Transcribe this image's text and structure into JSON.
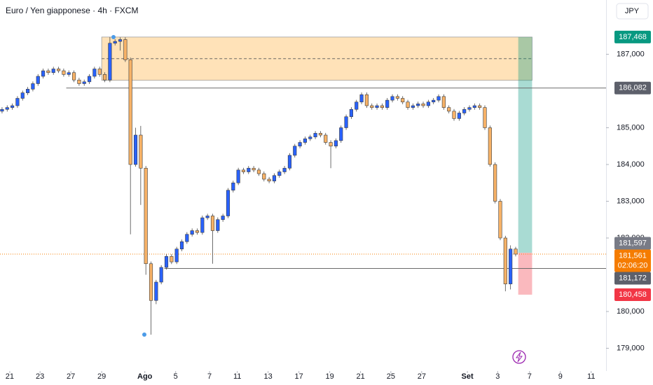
{
  "chart_data": {
    "type": "candlestick",
    "title": "Euro / Yen giapponese · 4h · FXCM",
    "currency": "JPY",
    "up_color": "#2962ff",
    "down_color": "#f7b267",
    "xlim": [
      -0.4,
      117.6
    ],
    "ylim": [
      178381,
      188476
    ],
    "xticks": [
      {
        "value": 1.5,
        "label": "21"
      },
      {
        "value": 7.4,
        "label": "23"
      },
      {
        "value": 13.4,
        "label": "27"
      },
      {
        "value": 19.4,
        "label": "29"
      },
      {
        "value": 27.8,
        "label": "Ago"
      },
      {
        "value": 33.8,
        "label": "5"
      },
      {
        "value": 40.4,
        "label": "7"
      },
      {
        "value": 45.8,
        "label": "11"
      },
      {
        "value": 51.8,
        "label": "13"
      },
      {
        "value": 57.8,
        "label": "17"
      },
      {
        "value": 63.8,
        "label": "19"
      },
      {
        "value": 69.8,
        "label": "21"
      },
      {
        "value": 75.7,
        "label": "25"
      },
      {
        "value": 81.7,
        "label": "27"
      },
      {
        "value": 90.6,
        "label": "Set"
      },
      {
        "value": 96.5,
        "label": "3"
      },
      {
        "value": 102.7,
        "label": "7"
      },
      {
        "value": 108.7,
        "label": "9"
      },
      {
        "value": 114.7,
        "label": "11"
      }
    ],
    "yticks": [
      {
        "value": 179000,
        "label": "179,000"
      },
      {
        "value": 180000,
        "label": "180,000"
      },
      {
        "value": 182000,
        "label": "182,000"
      },
      {
        "value": 183000,
        "label": "183,000"
      },
      {
        "value": 184000,
        "label": "184,000"
      },
      {
        "value": 185000,
        "label": "185,000"
      },
      {
        "value": 187000,
        "label": "187,000"
      }
    ],
    "candles": {
      "open": [
        185450,
        185500,
        185550,
        185600,
        185800,
        185950,
        186050,
        186200,
        186400,
        186550,
        186500,
        186600,
        186550,
        186450,
        186500,
        186300,
        186200,
        186250,
        186400,
        186600,
        186450,
        186300,
        187300,
        187350,
        187400,
        186850,
        184000,
        184800,
        183900,
        181300,
        180300,
        180800,
        181200,
        181500,
        181350,
        181700,
        181900,
        182100,
        182200,
        182150,
        182550,
        182600,
        182200,
        182500,
        182600,
        183300,
        183500,
        183850,
        183800,
        183900,
        183850,
        183750,
        183600,
        183550,
        183700,
        183800,
        183900,
        184250,
        184500,
        184600,
        184700,
        184750,
        184850,
        184800,
        184600,
        184500,
        184650,
        185000,
        185300,
        185500,
        185700,
        185900,
        185600,
        185550,
        185600,
        185550,
        185750,
        185850,
        185800,
        185700,
        185550,
        185600,
        185650,
        185600,
        185700,
        185750,
        185850,
        185550,
        185450,
        185250,
        185400,
        185500,
        185550,
        185600,
        185550,
        185000,
        184000,
        183000,
        182000,
        180750,
        181700
      ],
      "high": [
        185560,
        185610,
        185660,
        185860,
        186010,
        186110,
        186260,
        186460,
        186610,
        186610,
        186660,
        186660,
        186610,
        186560,
        186560,
        186360,
        186310,
        186460,
        186660,
        186660,
        186510,
        187468,
        187410,
        187460,
        187460,
        186910,
        185000,
        185050,
        183960,
        181360,
        180860,
        181260,
        181560,
        181560,
        181760,
        181960,
        182160,
        182260,
        182260,
        182610,
        182660,
        182660,
        182560,
        182660,
        183360,
        183560,
        183910,
        183910,
        183960,
        183960,
        183910,
        183810,
        183660,
        183760,
        183860,
        183960,
        184310,
        184560,
        184660,
        184760,
        184810,
        184910,
        184910,
        184860,
        184660,
        184710,
        185060,
        185360,
        185560,
        185760,
        185960,
        185960,
        185660,
        185660,
        185660,
        185810,
        185910,
        185910,
        185860,
        185760,
        185660,
        185710,
        185710,
        185760,
        185810,
        185910,
        185910,
        185610,
        185510,
        185460,
        185560,
        185610,
        185660,
        185660,
        185610,
        185060,
        184060,
        183060,
        182060,
        181800,
        181760
      ],
      "low": [
        185390,
        185440,
        185490,
        185540,
        185740,
        185890,
        185990,
        186140,
        186340,
        186440,
        186440,
        186490,
        186390,
        186390,
        186240,
        186140,
        186140,
        186190,
        186340,
        186390,
        186240,
        186240,
        187240,
        187100,
        186790,
        182100,
        183940,
        182900,
        181000,
        179370,
        180200,
        180740,
        181140,
        181290,
        181290,
        181640,
        181840,
        182040,
        182090,
        182090,
        182490,
        181300,
        182140,
        182440,
        182540,
        183240,
        183440,
        183740,
        183740,
        183790,
        183690,
        183540,
        183490,
        183490,
        183640,
        183740,
        183840,
        184190,
        184440,
        184540,
        184640,
        184690,
        184740,
        184540,
        183900,
        184440,
        184590,
        184940,
        185240,
        185440,
        185640,
        185540,
        185490,
        185490,
        185490,
        185490,
        185690,
        185740,
        185640,
        185490,
        185490,
        185540,
        185540,
        185540,
        185640,
        185690,
        185490,
        185390,
        185190,
        185190,
        185340,
        185440,
        185490,
        185490,
        184940,
        183940,
        182940,
        181940,
        180550,
        180600,
        181500
      ],
      "close": [
        185500,
        185550,
        185600,
        185800,
        185950,
        186050,
        186200,
        186400,
        186550,
        186500,
        186600,
        186550,
        186450,
        186500,
        186300,
        186200,
        186250,
        186400,
        186600,
        186450,
        186300,
        187300,
        187350,
        187400,
        186850,
        184000,
        184800,
        183900,
        181300,
        180300,
        180800,
        181200,
        181500,
        181350,
        181700,
        181900,
        182100,
        182200,
        182150,
        182550,
        182600,
        182200,
        182500,
        182600,
        183300,
        183500,
        183850,
        183800,
        183900,
        183850,
        183750,
        183600,
        183550,
        183700,
        183800,
        183900,
        184250,
        184500,
        184600,
        184700,
        184750,
        184850,
        184800,
        184600,
        184500,
        184650,
        185000,
        185300,
        185500,
        185700,
        185900,
        185600,
        185550,
        185600,
        185550,
        185750,
        185850,
        185800,
        185700,
        185550,
        185600,
        185650,
        185600,
        185700,
        185750,
        185850,
        185550,
        185450,
        185250,
        185400,
        185500,
        185550,
        185600,
        185550,
        185000,
        184000,
        183000,
        182000,
        180750,
        181700,
        181561
      ]
    },
    "zone": {
      "top": 187468,
      "mid": 186880,
      "bottom": 186290,
      "x_start": 19.4,
      "x_end": 103.2
    },
    "position": {
      "target": 187468,
      "entry": 181597,
      "stop": 180458,
      "x_start": 100.5,
      "x_end": 103.2
    },
    "levels": [
      {
        "value": 186082,
        "x_start": 12.5
      },
      {
        "value": 181172,
        "x_start": 31.6
      }
    ],
    "last_price": 181561,
    "price_labels": [
      {
        "value": 187468,
        "label": "187,468",
        "color": "#089981"
      },
      {
        "value": 186082,
        "label": "186,082",
        "color": "#5d606b"
      },
      {
        "value": 181597,
        "label": "181,597",
        "color": "#787b86"
      },
      {
        "value": 181561,
        "label": "181,561",
        "sub": "02:06:20",
        "color": "#f57c00"
      },
      {
        "value": 181172,
        "label": "181,172",
        "color": "#5d606b"
      },
      {
        "value": 180458,
        "label": "180,458",
        "color": "#f23645"
      }
    ]
  }
}
